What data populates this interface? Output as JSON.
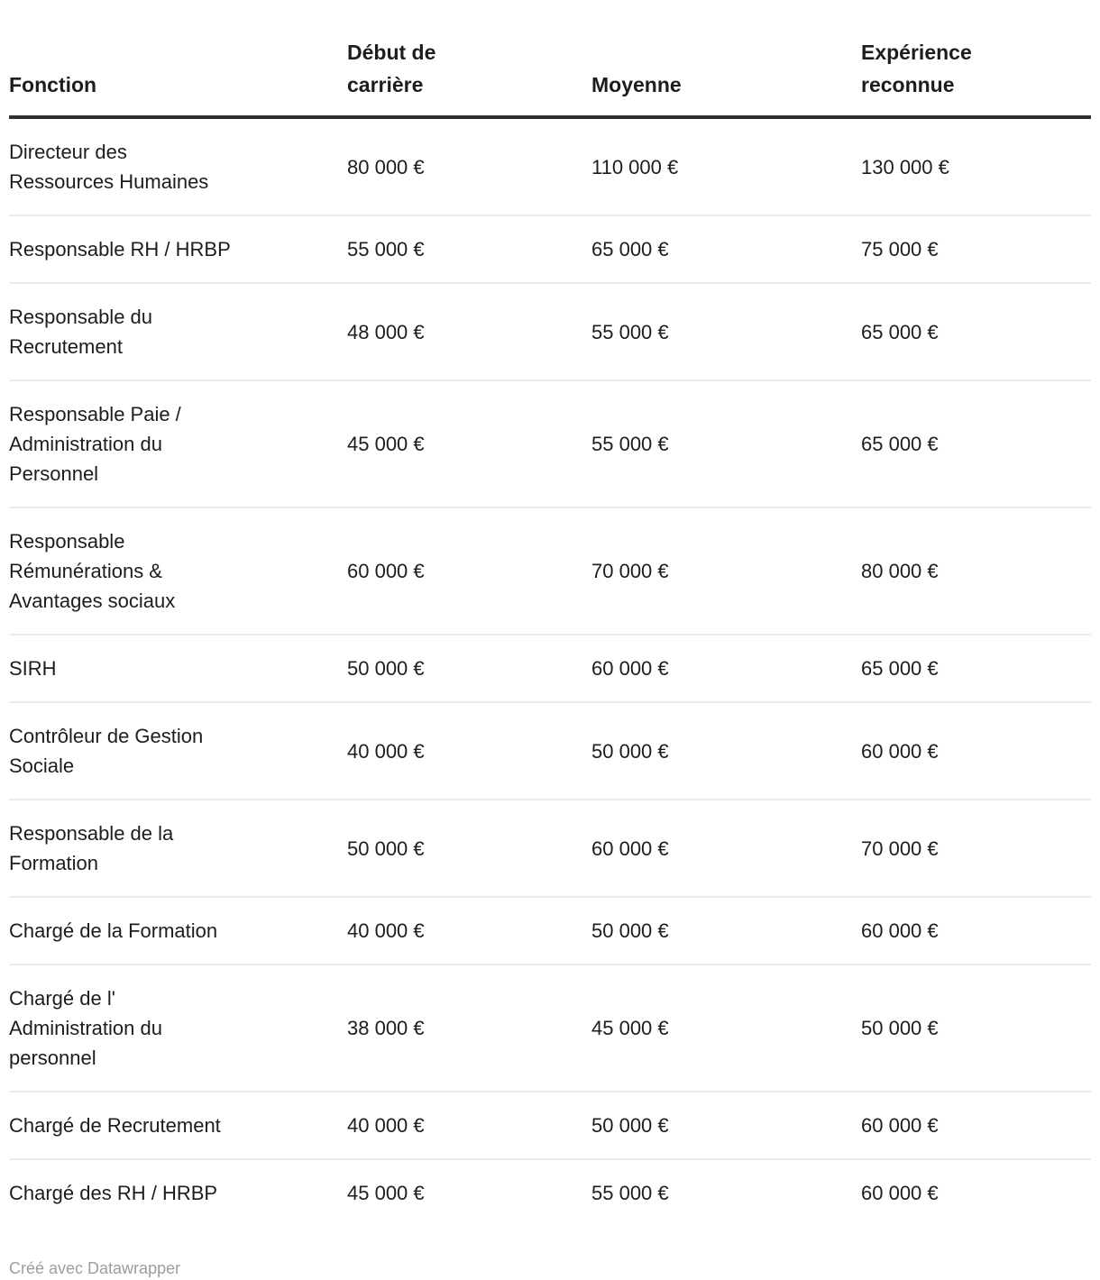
{
  "table": {
    "columns": [
      {
        "label": "Fonction"
      },
      {
        "label": "Début de\ncarrière"
      },
      {
        "label": "Moyenne"
      },
      {
        "label": "Expérience\nreconnue"
      }
    ],
    "rows": [
      {
        "fonction": "Directeur des\nRessources Humaines",
        "debut": "80 000 €",
        "moyenne": "110 000 €",
        "experience": "130 000 €"
      },
      {
        "fonction": "Responsable RH / HRBP",
        "debut": "55 000 €",
        "moyenne": "65 000 €",
        "experience": "75 000 €"
      },
      {
        "fonction": "Responsable du\nRecrutement",
        "debut": "48 000 €",
        "moyenne": "55 000 €",
        "experience": "65 000 €"
      },
      {
        "fonction": "Responsable Paie /\nAdministration du\nPersonnel",
        "debut": "45 000 €",
        "moyenne": "55 000 €",
        "experience": "65 000 €"
      },
      {
        "fonction": "Responsable\nRémunérations &\nAvantages sociaux",
        "debut": "60 000 €",
        "moyenne": "70 000 €",
        "experience": "80 000 €"
      },
      {
        "fonction": "SIRH",
        "debut": "50 000 €",
        "moyenne": "60 000 €",
        "experience": "65 000 €"
      },
      {
        "fonction": "Contrôleur de Gestion\nSociale",
        "debut": "40 000 €",
        "moyenne": "50 000 €",
        "experience": "60 000 €"
      },
      {
        "fonction": "Responsable de la\nFormation",
        "debut": "50 000 €",
        "moyenne": "60 000 €",
        "experience": "70 000 €"
      },
      {
        "fonction": "Chargé de la Formation",
        "debut": "40 000 €",
        "moyenne": "50 000 €",
        "experience": "60 000 €"
      },
      {
        "fonction": "Chargé de l'\nAdministration du\npersonnel",
        "debut": "38 000 €",
        "moyenne": "45 000 €",
        "experience": "50 000 €"
      },
      {
        "fonction": "Chargé de Recrutement",
        "debut": "40 000 €",
        "moyenne": "50 000 €",
        "experience": "60 000 €"
      },
      {
        "fonction": "Chargé des RH / HRBP",
        "debut": "45 000 €",
        "moyenne": "55 000 €",
        "experience": "60 000 €"
      }
    ]
  },
  "footer": {
    "credit": "Créé avec Datawrapper"
  },
  "colors": {
    "text": "#1d1d1d",
    "header_border": "#2f2f2f",
    "row_border": "#ececec",
    "footer_text": "#9d9d9d",
    "background": "#ffffff"
  },
  "chart_data": {
    "type": "table",
    "title": "",
    "columns": [
      "Fonction",
      "Début de carrière",
      "Moyenne",
      "Expérience reconnue"
    ],
    "unit": "€",
    "categories": [
      "Directeur des Ressources Humaines",
      "Responsable RH / HRBP",
      "Responsable du Recrutement",
      "Responsable Paie / Administration du Personnel",
      "Responsable Rémunérations & Avantages sociaux",
      "SIRH",
      "Contrôleur de Gestion Sociale",
      "Responsable de la Formation",
      "Chargé de la Formation",
      "Chargé de l' Administration du personnel",
      "Chargé de Recrutement",
      "Chargé des RH / HRBP"
    ],
    "series": [
      {
        "name": "Début de carrière",
        "values": [
          80000,
          55000,
          48000,
          45000,
          60000,
          50000,
          40000,
          50000,
          40000,
          38000,
          40000,
          45000
        ]
      },
      {
        "name": "Moyenne",
        "values": [
          110000,
          65000,
          55000,
          55000,
          70000,
          60000,
          50000,
          60000,
          50000,
          45000,
          50000,
          55000
        ]
      },
      {
        "name": "Expérience reconnue",
        "values": [
          130000,
          75000,
          65000,
          65000,
          80000,
          65000,
          60000,
          70000,
          60000,
          50000,
          60000,
          60000
        ]
      }
    ]
  }
}
